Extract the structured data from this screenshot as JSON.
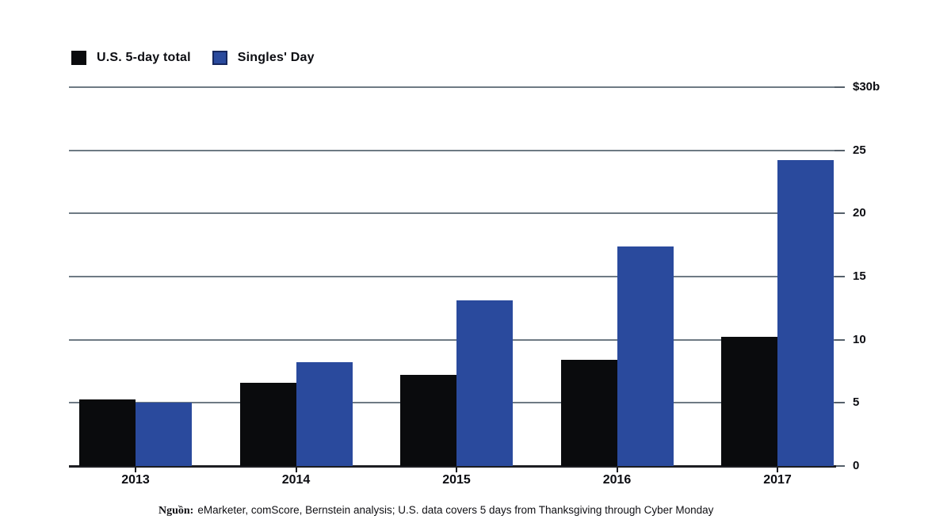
{
  "legend": {
    "items": [
      {
        "label": "U.S. 5-day total",
        "color": "#0a0b0d",
        "border": "#0a0b0d"
      },
      {
        "label": "Singles' Day",
        "color": "#2a4a9d",
        "border": "#16275e"
      }
    ]
  },
  "chart_data": {
    "type": "bar",
    "title": "",
    "categories": [
      "2013",
      "2014",
      "2015",
      "2016",
      "2017"
    ],
    "series": [
      {
        "name": "U.S. 5-day total",
        "color": "#0a0b0d",
        "values": [
          5.3,
          6.6,
          7.2,
          8.4,
          10.2
        ]
      },
      {
        "name": "Singles' Day",
        "color": "#2a4a9d",
        "values": [
          5.0,
          8.2,
          13.1,
          17.4,
          24.2
        ]
      }
    ],
    "ylim": [
      0,
      30
    ],
    "yticks": [
      {
        "value": 30,
        "label": "$30b"
      },
      {
        "value": 25,
        "label": "25"
      },
      {
        "value": 20,
        "label": "20"
      },
      {
        "value": 15,
        "label": "15"
      },
      {
        "value": 10,
        "label": "10"
      },
      {
        "value": 5,
        "label": "5"
      },
      {
        "value": 0,
        "label": "0"
      }
    ],
    "grid": true,
    "legend_position": "top-left"
  },
  "colors": {
    "gridline": "#6e7a84",
    "axis": "#1d1e22",
    "tick": "#55606a",
    "text": "#0c0d12",
    "background": "#ffffff"
  },
  "source": {
    "prefix": "Nguồn:",
    "text": "eMarketer, comScore, Bernstein analysis; U.S. data covers 5 days from Thanksgiving through Cyber Monday"
  }
}
